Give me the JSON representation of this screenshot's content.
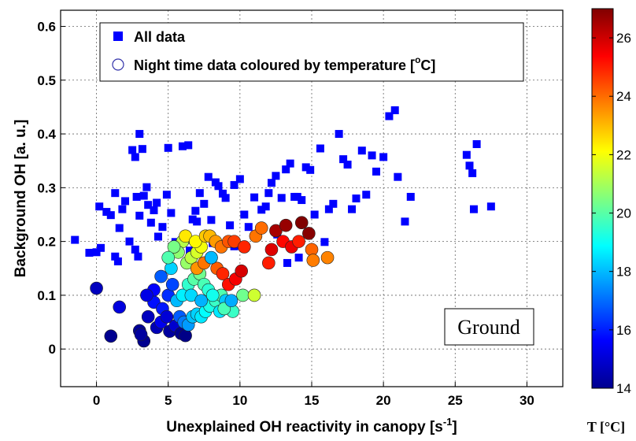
{
  "chart_data": {
    "type": "scatter",
    "xlabel": "Unexplained OH reactivity in canopy [s",
    "xlabel_sup": "-1",
    "xlabel_end": "]",
    "ylabel": "Background OH [a. u.]",
    "xlim": [
      -2.5,
      32.5
    ],
    "ylim": [
      -0.07,
      0.63
    ],
    "x_ticks": [
      0,
      5,
      10,
      15,
      20,
      25,
      30
    ],
    "y_ticks": [
      0,
      0.1,
      0.2,
      0.3,
      0.4,
      0.5,
      0.6
    ],
    "y_tick_labels": [
      "0",
      "0.1",
      "0.2",
      "0.3",
      "0.4",
      "0.5",
      "0.6"
    ],
    "grid": true,
    "legend_position": "top-left",
    "legend": [
      {
        "label": "All data",
        "marker": "square",
        "color": "#0000ff"
      },
      {
        "label": "Night time data coloured by temperature [",
        "label_sup": "o",
        "label_end": "C]",
        "marker": "circle-open",
        "color": "#3333aa"
      }
    ],
    "annotation": "Ground",
    "colorbar": {
      "label": "T [°C]",
      "range": [
        14,
        27
      ],
      "ticks": [
        14,
        16,
        18,
        20,
        22,
        24,
        26
      ],
      "colormap": "jet"
    },
    "series": [
      {
        "name": "All data",
        "marker": "square",
        "points": [
          [
            -1.5,
            0.203
          ],
          [
            -0.5,
            0.179
          ],
          [
            0,
            0.18
          ],
          [
            0.2,
            0.265
          ],
          [
            0.3,
            0.188
          ],
          [
            0.7,
            0.255
          ],
          [
            1.0,
            0.249
          ],
          [
            1.3,
            0.29
          ],
          [
            1.3,
            0.172
          ],
          [
            1.5,
            0.163
          ],
          [
            1.6,
            0.225
          ],
          [
            1.8,
            0.26
          ],
          [
            2.0,
            0.275
          ],
          [
            2.3,
            0.2
          ],
          [
            2.5,
            0.37
          ],
          [
            2.7,
            0.357
          ],
          [
            2.8,
            0.283
          ],
          [
            3.0,
            0.4
          ],
          [
            3.2,
            0.372
          ],
          [
            3.3,
            0.285
          ],
          [
            3.5,
            0.301
          ],
          [
            3.0,
            0.248
          ],
          [
            2.7,
            0.185
          ],
          [
            2.9,
            0.172
          ],
          [
            3.6,
            0.268
          ],
          [
            3.8,
            0.235
          ],
          [
            4.0,
            0.258
          ],
          [
            4.2,
            0.272
          ],
          [
            4.3,
            0.209
          ],
          [
            4.6,
            0.227
          ],
          [
            4.9,
            0.287
          ],
          [
            5.0,
            0.374
          ],
          [
            5.2,
            0.253
          ],
          [
            5.5,
            0.199
          ],
          [
            6.0,
            0.377
          ],
          [
            6.2,
            0.203
          ],
          [
            6.4,
            0.379
          ],
          [
            6.7,
            0.241
          ],
          [
            6.9,
            0.257
          ],
          [
            7.0,
            0.237
          ],
          [
            7.2,
            0.29
          ],
          [
            7.5,
            0.27
          ],
          [
            7.8,
            0.32
          ],
          [
            8.0,
            0.24
          ],
          [
            8.3,
            0.31
          ],
          [
            8.5,
            0.303
          ],
          [
            8.8,
            0.289
          ],
          [
            9.0,
            0.281
          ],
          [
            9.3,
            0.23
          ],
          [
            9.6,
            0.305
          ],
          [
            10.0,
            0.316
          ],
          [
            10.3,
            0.25
          ],
          [
            10.6,
            0.227
          ],
          [
            11.0,
            0.282
          ],
          [
            11.5,
            0.259
          ],
          [
            11.8,
            0.265
          ],
          [
            12.0,
            0.29
          ],
          [
            12.2,
            0.309
          ],
          [
            12.5,
            0.322
          ],
          [
            12.9,
            0.281
          ],
          [
            13.2,
            0.334
          ],
          [
            13.5,
            0.345
          ],
          [
            13.8,
            0.283
          ],
          [
            14.0,
            0.283
          ],
          [
            14.3,
            0.277
          ],
          [
            14.6,
            0.338
          ],
          [
            14.9,
            0.333
          ],
          [
            15.2,
            0.25
          ],
          [
            15.6,
            0.373
          ],
          [
            15.9,
            0.199
          ],
          [
            16.2,
            0.26
          ],
          [
            16.5,
            0.27
          ],
          [
            16.9,
            0.4
          ],
          [
            17.2,
            0.353
          ],
          [
            17.5,
            0.343
          ],
          [
            17.8,
            0.26
          ],
          [
            18.1,
            0.28
          ],
          [
            18.5,
            0.369
          ],
          [
            18.8,
            0.287
          ],
          [
            19.2,
            0.36
          ],
          [
            19.5,
            0.33
          ],
          [
            20.0,
            0.357
          ],
          [
            20.4,
            0.433
          ],
          [
            20.8,
            0.444
          ],
          [
            21.0,
            0.32
          ],
          [
            21.5,
            0.237
          ],
          [
            21.9,
            0.283
          ],
          [
            25.8,
            0.361
          ],
          [
            26.0,
            0.341
          ],
          [
            26.2,
            0.327
          ],
          [
            26.3,
            0.26
          ],
          [
            26.5,
            0.381
          ],
          [
            27.5,
            0.265
          ],
          [
            12.6,
            0.213
          ],
          [
            13.3,
            0.16
          ],
          [
            14.1,
            0.17
          ],
          [
            6.5,
            0.183
          ],
          [
            8.1,
            0.197
          ],
          [
            9.6,
            0.191
          ]
        ]
      },
      {
        "name": "Night time data coloured by temperature",
        "marker": "circle",
        "points": [
          [
            0.0,
            0.113,
            14.8
          ],
          [
            1.0,
            0.024,
            14.2
          ],
          [
            1.6,
            0.078,
            15.2
          ],
          [
            3.0,
            0.034,
            14.3
          ],
          [
            3.3,
            0.015,
            14.2
          ],
          [
            3.1,
            0.027,
            14.4
          ],
          [
            3.6,
            0.06,
            14.8
          ],
          [
            4.0,
            0.087,
            15.8
          ],
          [
            4.2,
            0.04,
            14.7
          ],
          [
            4.5,
            0.05,
            15.4
          ],
          [
            4.6,
            0.075,
            15.9
          ],
          [
            4.9,
            0.06,
            15.1
          ],
          [
            5.1,
            0.033,
            14.4
          ],
          [
            5.5,
            0.043,
            15.0
          ],
          [
            5.9,
            0.029,
            14.2
          ],
          [
            6.2,
            0.025,
            14.1
          ],
          [
            5.0,
            0.1,
            16.2
          ],
          [
            5.3,
            0.12,
            16.5
          ],
          [
            4.5,
            0.135,
            16.8
          ],
          [
            4.0,
            0.11,
            15.6
          ],
          [
            3.5,
            0.1,
            15.3
          ],
          [
            5.8,
            0.06,
            16.8
          ],
          [
            6.1,
            0.05,
            17.2
          ],
          [
            6.4,
            0.045,
            17.6
          ],
          [
            6.7,
            0.06,
            18.1
          ],
          [
            7.0,
            0.065,
            18.3
          ],
          [
            7.3,
            0.06,
            18.6
          ],
          [
            7.6,
            0.07,
            18.9
          ],
          [
            7.9,
            0.08,
            19.2
          ],
          [
            8.3,
            0.09,
            19.6
          ],
          [
            8.7,
            0.1,
            19.9
          ],
          [
            9.0,
            0.09,
            18.2
          ],
          [
            9.5,
            0.07,
            19.6
          ],
          [
            10.2,
            0.1,
            20.3
          ],
          [
            11.0,
            0.1,
            21.5
          ],
          [
            5.6,
            0.09,
            18.0
          ],
          [
            6.0,
            0.1,
            18.7
          ],
          [
            6.4,
            0.12,
            19.5
          ],
          [
            6.8,
            0.13,
            20.0
          ],
          [
            7.2,
            0.14,
            20.3
          ],
          [
            7.5,
            0.12,
            19.8
          ],
          [
            7.8,
            0.11,
            19.4
          ],
          [
            8.1,
            0.1,
            19.1
          ],
          [
            6.3,
            0.16,
            20.8
          ],
          [
            6.6,
            0.17,
            21.3
          ],
          [
            7.0,
            0.18,
            21.6
          ],
          [
            7.3,
            0.19,
            22.0
          ],
          [
            6.0,
            0.2,
            21.2
          ],
          [
            5.7,
            0.18,
            20.7
          ],
          [
            5.4,
            0.19,
            20.4
          ],
          [
            5.2,
            0.15,
            18.3
          ],
          [
            5.0,
            0.17,
            19.9
          ],
          [
            6.2,
            0.21,
            22.4
          ],
          [
            6.9,
            0.2,
            22.2
          ],
          [
            7.6,
            0.21,
            22.8
          ],
          [
            7.9,
            0.21,
            23.0
          ],
          [
            8.3,
            0.2,
            23.4
          ],
          [
            8.7,
            0.19,
            23.9
          ],
          [
            9.2,
            0.2,
            24.3
          ],
          [
            9.6,
            0.2,
            24.6
          ],
          [
            10.3,
            0.19,
            24.9
          ],
          [
            7.0,
            0.15,
            23.5
          ],
          [
            7.5,
            0.16,
            23.9
          ],
          [
            8.0,
            0.17,
            24.5
          ],
          [
            8.4,
            0.15,
            24.2
          ],
          [
            8.8,
            0.14,
            24.9
          ],
          [
            9.2,
            0.12,
            25.2
          ],
          [
            9.7,
            0.13,
            25.5
          ],
          [
            10.1,
            0.145,
            25.9
          ],
          [
            11.1,
            0.21,
            23.9
          ],
          [
            11.5,
            0.225,
            24.0
          ],
          [
            12.0,
            0.16,
            25.0
          ],
          [
            12.5,
            0.22,
            26.5
          ],
          [
            13.0,
            0.2,
            25.3
          ],
          [
            13.2,
            0.23,
            26.7
          ],
          [
            13.6,
            0.19,
            25.6
          ],
          [
            14.1,
            0.2,
            25.0
          ],
          [
            14.3,
            0.235,
            27.0
          ],
          [
            14.8,
            0.215,
            26.9
          ],
          [
            15.0,
            0.185,
            24.1
          ],
          [
            15.1,
            0.165,
            23.8
          ],
          [
            16.1,
            0.17,
            23.7
          ],
          [
            12.2,
            0.185,
            25.8
          ],
          [
            8.0,
            0.17,
            18.0
          ],
          [
            6.6,
            0.1,
            18.4
          ],
          [
            7.3,
            0.09,
            17.9
          ],
          [
            8.6,
            0.07,
            18.6
          ],
          [
            8.9,
            0.075,
            19.8
          ],
          [
            9.4,
            0.09,
            17.8
          ]
        ]
      }
    ]
  }
}
